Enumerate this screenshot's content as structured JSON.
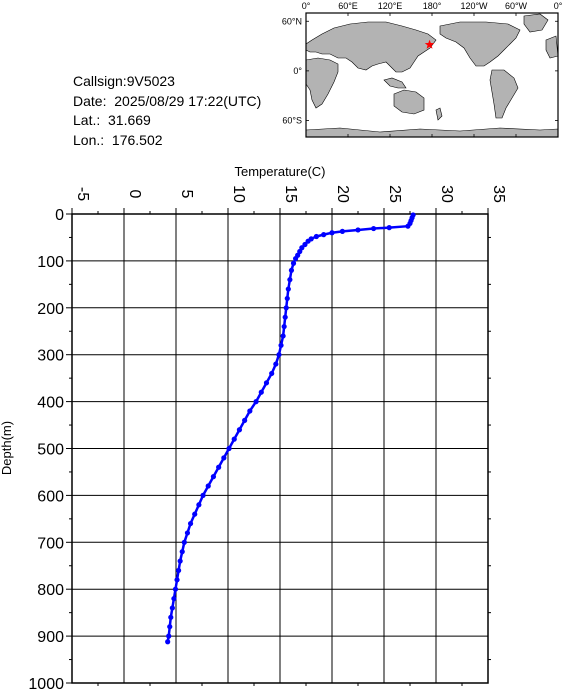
{
  "station": {
    "callsign": "Callsign:9V5023",
    "date": "Date:  2025/08/29 17:22(UTC)",
    "lat": "Lat.:  31.669",
    "lon": "Lon.:  176.502"
  },
  "map": {
    "top_labels": [
      "0°",
      "60°E",
      "120°E",
      "180°",
      "120°W",
      "60°W",
      "0°"
    ],
    "side_labels": [
      "60°N",
      "0°",
      "60°S"
    ],
    "marker": {
      "lat": 31.669,
      "lon": 176.502
    },
    "colors": {
      "ocean": "#ffffff",
      "land": "#b3b3b3",
      "marker": "#ff0000"
    }
  },
  "chart_data": {
    "type": "line",
    "xlabel": "Temperature(C)",
    "ylabel": "Depth(m)",
    "xlim": [
      -5,
      35
    ],
    "ylim": [
      1000,
      0
    ],
    "x_ticks": [
      "-5",
      "0",
      "5",
      "10",
      "15",
      "20",
      "25",
      "30",
      "35"
    ],
    "y_ticks": [
      "0",
      "100",
      "200",
      "300",
      "400",
      "500",
      "600",
      "700",
      "800",
      "900",
      "1000"
    ],
    "grid": true,
    "series": [
      {
        "color": "#0000ff",
        "points": [
          [
            27.8,
            2
          ],
          [
            27.7,
            8
          ],
          [
            27.6,
            14
          ],
          [
            27.5,
            20
          ],
          [
            27.3,
            26
          ],
          [
            25.5,
            29
          ],
          [
            24.0,
            31
          ],
          [
            22.5,
            34
          ],
          [
            21.0,
            37
          ],
          [
            20.0,
            40
          ],
          [
            19.2,
            44
          ],
          [
            18.5,
            48
          ],
          [
            18.0,
            53
          ],
          [
            17.7,
            58
          ],
          [
            17.4,
            65
          ],
          [
            17.1,
            72
          ],
          [
            16.9,
            80
          ],
          [
            16.7,
            88
          ],
          [
            16.5,
            95
          ],
          [
            16.3,
            105
          ],
          [
            16.1,
            120
          ],
          [
            15.95,
            140
          ],
          [
            15.8,
            160
          ],
          [
            15.7,
            180
          ],
          [
            15.6,
            200
          ],
          [
            15.5,
            220
          ],
          [
            15.4,
            240
          ],
          [
            15.3,
            260
          ],
          [
            15.1,
            280
          ],
          [
            14.9,
            300
          ],
          [
            14.6,
            320
          ],
          [
            14.2,
            340
          ],
          [
            13.7,
            360
          ],
          [
            13.2,
            380
          ],
          [
            12.7,
            400
          ],
          [
            12.1,
            420
          ],
          [
            11.6,
            440
          ],
          [
            11.1,
            460
          ],
          [
            10.6,
            480
          ],
          [
            10.1,
            500
          ],
          [
            9.6,
            520
          ],
          [
            9.1,
            540
          ],
          [
            8.6,
            560
          ],
          [
            8.1,
            580
          ],
          [
            7.6,
            600
          ],
          [
            7.2,
            620
          ],
          [
            6.8,
            640
          ],
          [
            6.4,
            660
          ],
          [
            6.1,
            680
          ],
          [
            5.8,
            700
          ],
          [
            5.6,
            720
          ],
          [
            5.4,
            740
          ],
          [
            5.25,
            760
          ],
          [
            5.1,
            780
          ],
          [
            4.95,
            800
          ],
          [
            4.8,
            820
          ],
          [
            4.65,
            840
          ],
          [
            4.5,
            860
          ],
          [
            4.4,
            880
          ],
          [
            4.3,
            900
          ],
          [
            4.2,
            912
          ]
        ]
      }
    ]
  }
}
